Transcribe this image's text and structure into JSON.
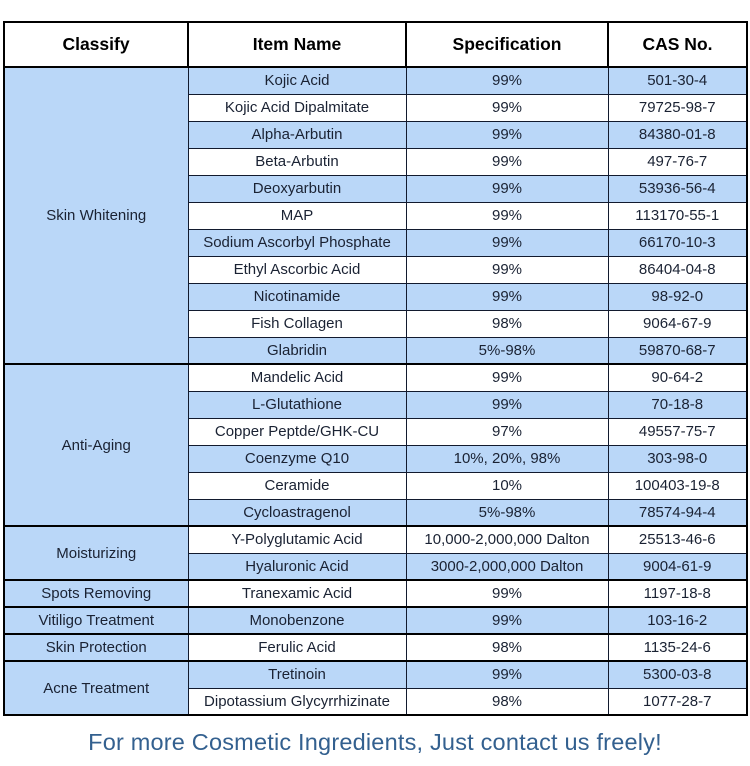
{
  "colors": {
    "row_blue": "#BAD7F8",
    "row_white": "#FFFFFF",
    "border_inner": "#121A2E",
    "border_outer": "#000000",
    "body_text": "#1A2233",
    "footer_color": "#33608F",
    "page_bg": "#FFFFFF"
  },
  "table": {
    "type": "table",
    "headers": [
      "Classify",
      "Item Name",
      "Specification",
      "CAS No."
    ],
    "sections": [
      {
        "classify": "Skin Whitening",
        "rows": [
          {
            "item": "Kojic Acid",
            "spec": "99%",
            "cas": "501-30-4"
          },
          {
            "item": "Kojic Acid Dipalmitate",
            "spec": "99%",
            "cas": "79725-98-7"
          },
          {
            "item": "Alpha-Arbutin",
            "spec": "99%",
            "cas": "84380-01-8"
          },
          {
            "item": "Beta-Arbutin",
            "spec": "99%",
            "cas": "497-76-7"
          },
          {
            "item": "Deoxyarbutin",
            "spec": "99%",
            "cas": "53936-56-4"
          },
          {
            "item": "MAP",
            "spec": "99%",
            "cas": "113170-55-1"
          },
          {
            "item": "Sodium Ascorbyl Phosphate",
            "spec": "99%",
            "cas": "66170-10-3"
          },
          {
            "item": "Ethyl Ascorbic Acid",
            "spec": "99%",
            "cas": "86404-04-8"
          },
          {
            "item": "Nicotinamide",
            "spec": "99%",
            "cas": "98-92-0"
          },
          {
            "item": "Fish Collagen",
            "spec": "98%",
            "cas": "9064-67-9"
          },
          {
            "item": "Glabridin",
            "spec": "5%-98%",
            "cas": "59870-68-7"
          }
        ]
      },
      {
        "classify": "Anti-Aging",
        "rows": [
          {
            "item": "Mandelic Acid",
            "spec": "99%",
            "cas": "90-64-2"
          },
          {
            "item": "L-Glutathione",
            "spec": "99%",
            "cas": "70-18-8"
          },
          {
            "item": "Copper Peptde/GHK-CU",
            "spec": "97%",
            "cas": "49557-75-7"
          },
          {
            "item": "Coenzyme Q10",
            "spec": "10%, 20%, 98%",
            "cas": "303-98-0"
          },
          {
            "item": "Ceramide",
            "spec": "10%",
            "cas": "100403-19-8"
          },
          {
            "item": "Cycloastragenol",
            "spec": "5%-98%",
            "cas": "78574-94-4"
          }
        ]
      },
      {
        "classify": "Moisturizing",
        "rows": [
          {
            "item": "Y-Polyglutamic Acid",
            "spec": "10,000-2,000,000 Dalton",
            "cas": "25513-46-6"
          },
          {
            "item": "Hyaluronic Acid",
            "spec": "3000-2,000,000 Dalton",
            "cas": "9004-61-9"
          }
        ]
      },
      {
        "classify": "Spots Removing",
        "rows": [
          {
            "item": "Tranexamic Acid",
            "spec": "99%",
            "cas": "1197-18-8"
          }
        ]
      },
      {
        "classify": "Vitiligo Treatment",
        "rows": [
          {
            "item": "Monobenzone",
            "spec": "99%",
            "cas": "103-16-2"
          }
        ]
      },
      {
        "classify": "Skin Protection",
        "rows": [
          {
            "item": "Ferulic Acid",
            "spec": "98%",
            "cas": "1135-24-6"
          }
        ]
      },
      {
        "classify": "Acne Treatment",
        "rows": [
          {
            "item": "Tretinoin",
            "spec": "99%",
            "cas": "5300-03-8"
          },
          {
            "item": "Dipotassium Glycyrrhizinate",
            "spec": "98%",
            "cas": "1077-28-7"
          }
        ]
      }
    ]
  },
  "footer": {
    "text": "For more Cosmetic Ingredients, Just contact us freely!"
  }
}
